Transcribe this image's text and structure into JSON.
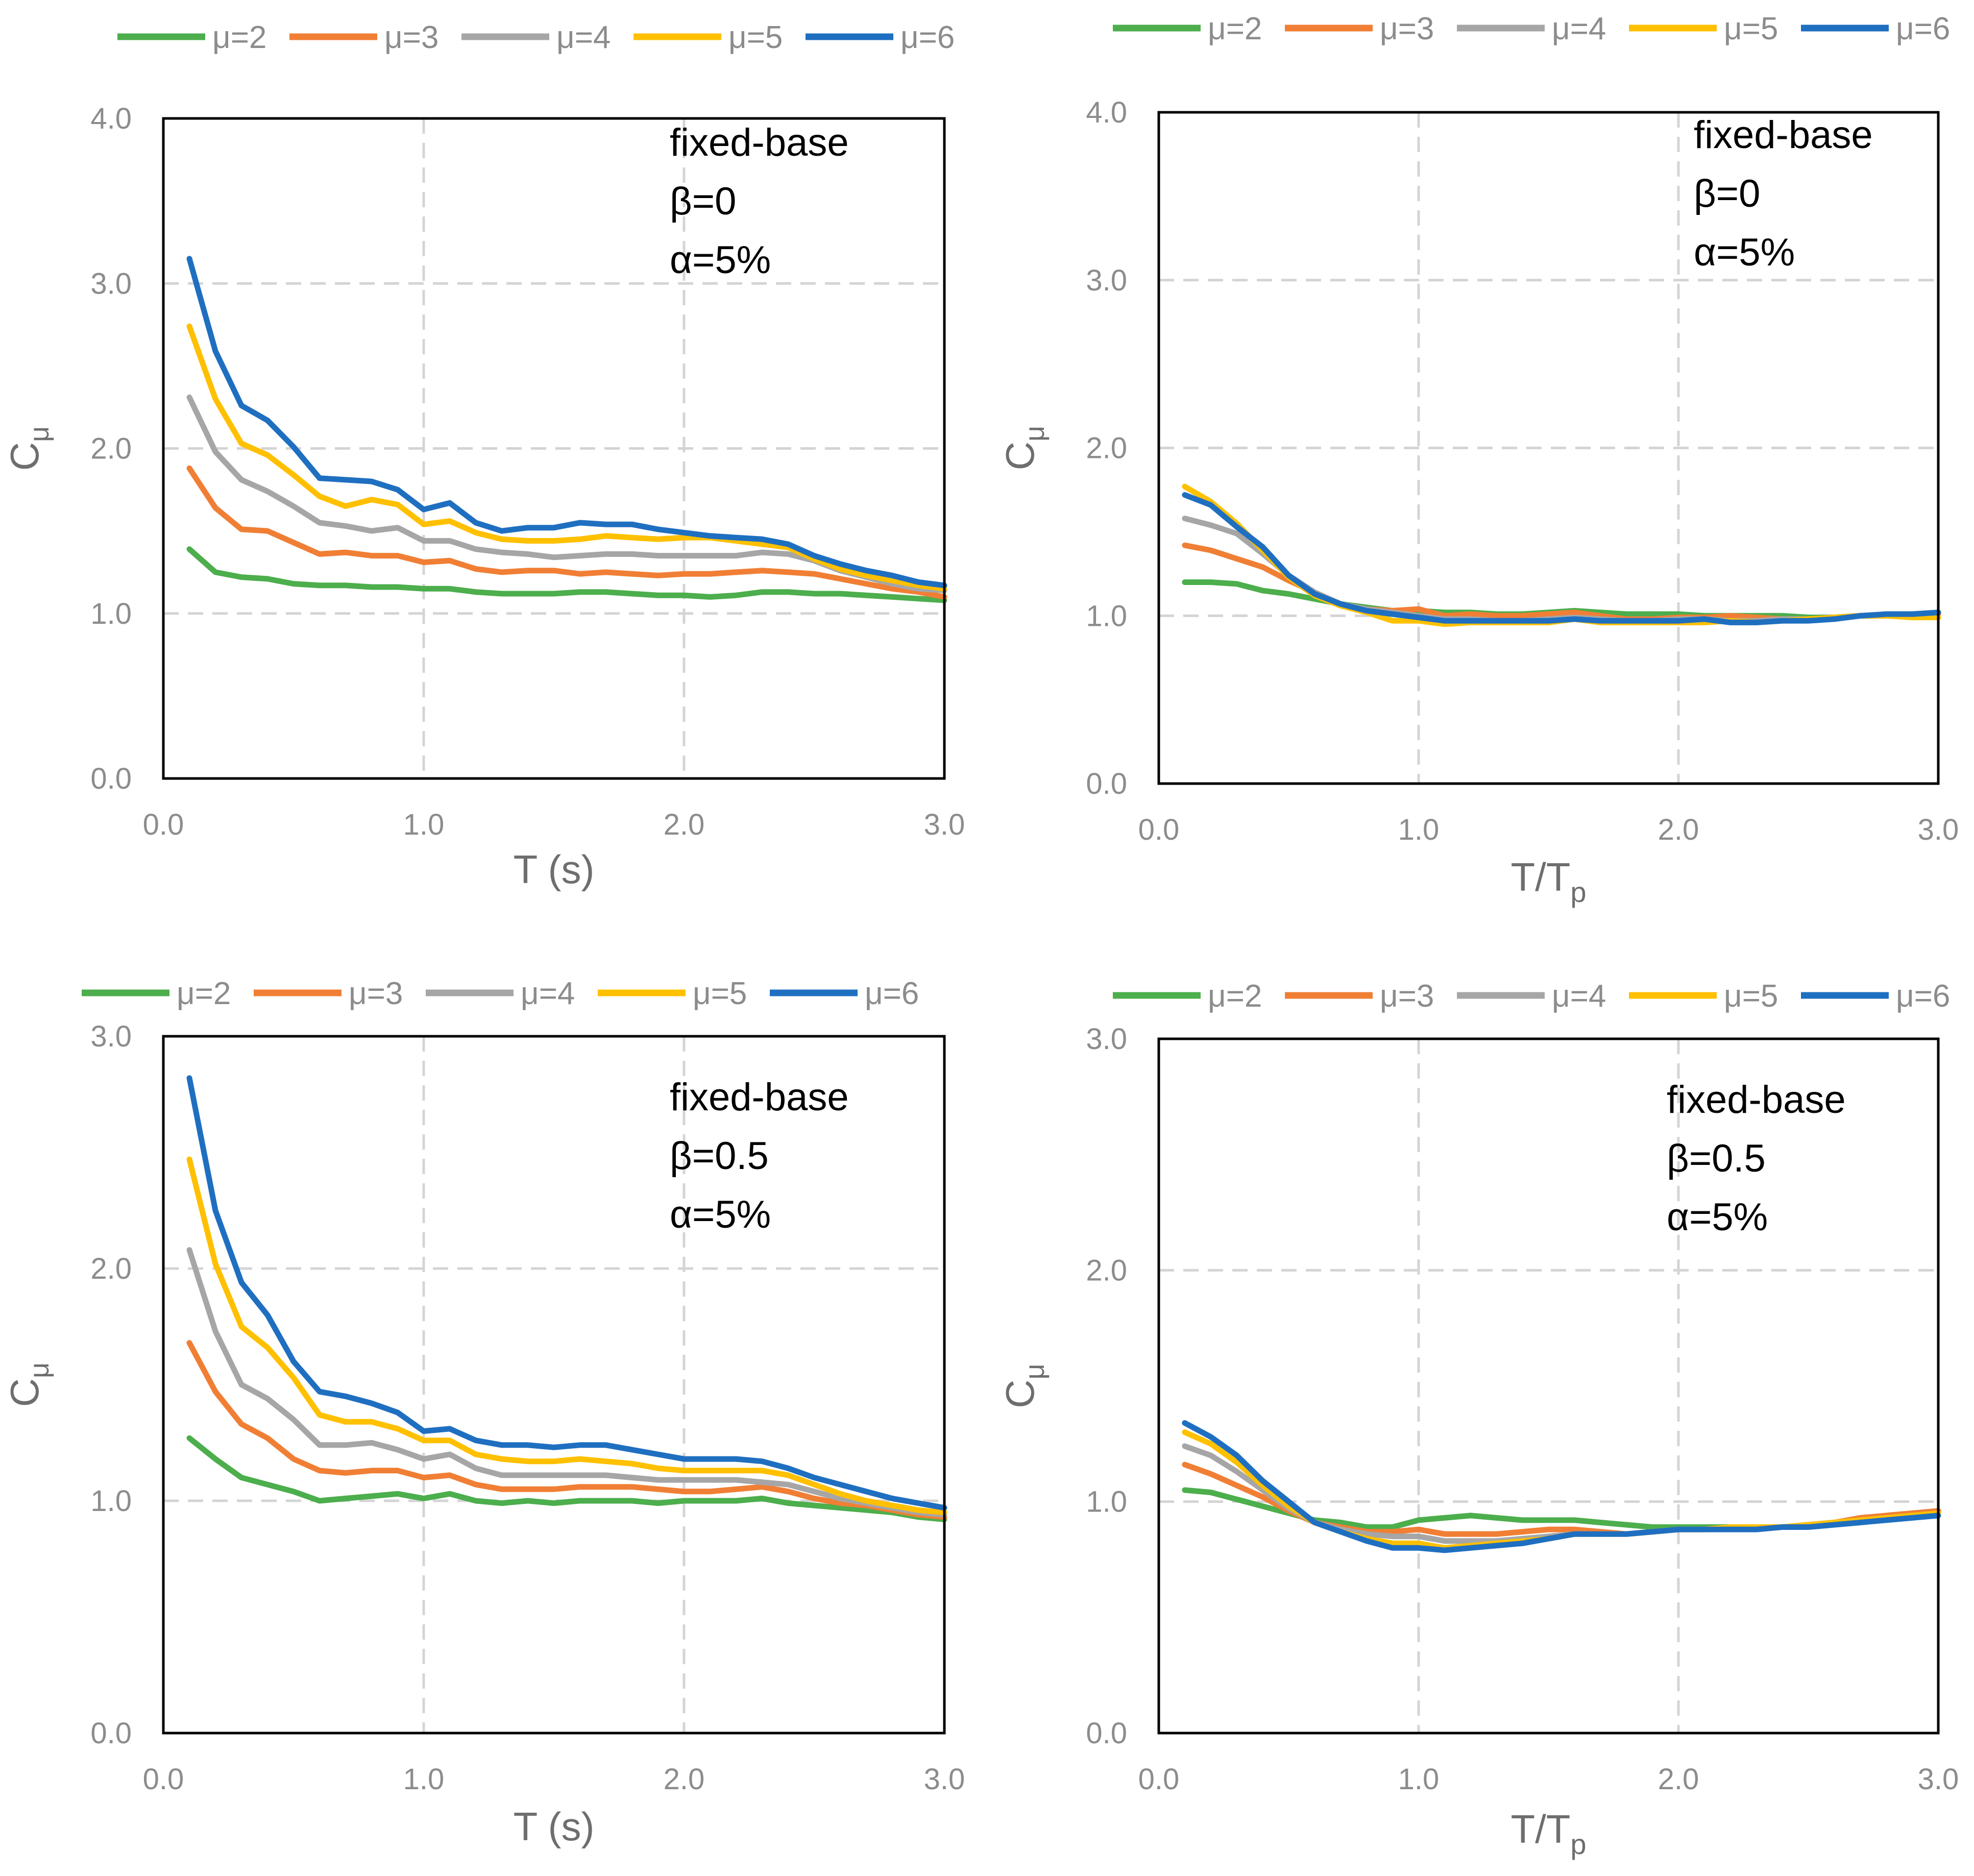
{
  "chart_data": [
    {
      "type": "line",
      "xlabel": "T (s)",
      "ylabel": "C",
      "ylabel_sub": "μ",
      "xlim": [
        0,
        3
      ],
      "ylim": [
        0,
        4
      ],
      "xticks": [
        "0.0",
        "1.0",
        "2.0",
        "3.0"
      ],
      "yticks": [
        "0.0",
        "1.0",
        "2.0",
        "3.0",
        "4.0"
      ],
      "grid": true,
      "legend": "top",
      "annotations": [
        "fixed-base",
        "β=0",
        "α=5%"
      ],
      "x": [
        0.1,
        0.2,
        0.3,
        0.4,
        0.5,
        0.6,
        0.7,
        0.8,
        0.9,
        1.0,
        1.1,
        1.2,
        1.3,
        1.4,
        1.5,
        1.6,
        1.7,
        1.8,
        1.9,
        2.0,
        2.1,
        2.2,
        2.3,
        2.4,
        2.5,
        2.6,
        2.7,
        2.8,
        2.9,
        3.0
      ],
      "series": [
        {
          "name": "μ=2",
          "color": "#4cae4c",
          "values": [
            1.39,
            1.25,
            1.22,
            1.21,
            1.18,
            1.17,
            1.17,
            1.16,
            1.16,
            1.15,
            1.15,
            1.13,
            1.12,
            1.12,
            1.12,
            1.13,
            1.13,
            1.12,
            1.11,
            1.11,
            1.1,
            1.11,
            1.13,
            1.13,
            1.12,
            1.12,
            1.11,
            1.1,
            1.09,
            1.08
          ]
        },
        {
          "name": "μ=3",
          "color": "#f07f35",
          "values": [
            1.88,
            1.64,
            1.51,
            1.5,
            1.43,
            1.36,
            1.37,
            1.35,
            1.35,
            1.31,
            1.32,
            1.27,
            1.25,
            1.26,
            1.26,
            1.24,
            1.25,
            1.24,
            1.23,
            1.24,
            1.24,
            1.25,
            1.26,
            1.25,
            1.24,
            1.21,
            1.18,
            1.15,
            1.13,
            1.1
          ]
        },
        {
          "name": "μ=4",
          "color": "#a6a6a6",
          "values": [
            2.31,
            1.98,
            1.81,
            1.74,
            1.65,
            1.55,
            1.53,
            1.5,
            1.52,
            1.44,
            1.44,
            1.39,
            1.37,
            1.36,
            1.34,
            1.35,
            1.36,
            1.36,
            1.35,
            1.35,
            1.35,
            1.35,
            1.37,
            1.36,
            1.32,
            1.26,
            1.22,
            1.18,
            1.15,
            1.14
          ]
        },
        {
          "name": "μ=5",
          "color": "#ffc000",
          "values": [
            2.74,
            2.3,
            2.03,
            1.96,
            1.84,
            1.71,
            1.65,
            1.69,
            1.66,
            1.54,
            1.56,
            1.49,
            1.45,
            1.44,
            1.44,
            1.45,
            1.47,
            1.46,
            1.45,
            1.46,
            1.46,
            1.44,
            1.42,
            1.4,
            1.33,
            1.27,
            1.23,
            1.2,
            1.17,
            1.15
          ]
        },
        {
          "name": "μ=6",
          "color": "#1f6fc0",
          "values": [
            3.15,
            2.59,
            2.26,
            2.17,
            2.01,
            1.82,
            1.81,
            1.8,
            1.75,
            1.63,
            1.67,
            1.55,
            1.5,
            1.52,
            1.52,
            1.55,
            1.54,
            1.54,
            1.51,
            1.49,
            1.47,
            1.46,
            1.45,
            1.42,
            1.35,
            1.3,
            1.26,
            1.23,
            1.19,
            1.17
          ]
        }
      ]
    },
    {
      "type": "line",
      "xlabel": "T/T",
      "xlabel_sub": "p",
      "ylabel": "C",
      "ylabel_sub": "μ",
      "xlim": [
        0,
        3
      ],
      "ylim": [
        0,
        4
      ],
      "xticks": [
        "0.0",
        "1.0",
        "2.0",
        "3.0"
      ],
      "yticks": [
        "0.0",
        "1.0",
        "2.0",
        "3.0",
        "4.0"
      ],
      "grid": true,
      "legend": "top",
      "annotations": [
        "fixed-base",
        "β=0",
        "α=5%"
      ],
      "x": [
        0.1,
        0.2,
        0.3,
        0.4,
        0.5,
        0.6,
        0.7,
        0.8,
        0.9,
        1.0,
        1.1,
        1.2,
        1.3,
        1.4,
        1.5,
        1.6,
        1.7,
        1.8,
        1.9,
        2.0,
        2.1,
        2.2,
        2.3,
        2.4,
        2.5,
        2.6,
        2.7,
        2.8,
        2.9,
        3.0
      ],
      "series": [
        {
          "name": "μ=2",
          "color": "#4cae4c",
          "values": [
            1.2,
            1.2,
            1.19,
            1.15,
            1.13,
            1.1,
            1.07,
            1.05,
            1.03,
            1.03,
            1.02,
            1.02,
            1.01,
            1.01,
            1.02,
            1.03,
            1.02,
            1.01,
            1.01,
            1.01,
            1.0,
            1.0,
            1.0,
            1.0,
            0.99,
            0.99,
            1.0,
            1.0,
            1.0,
            1.01
          ]
        },
        {
          "name": "μ=3",
          "color": "#f07f35",
          "values": [
            1.42,
            1.39,
            1.34,
            1.29,
            1.21,
            1.14,
            1.07,
            1.04,
            1.03,
            1.04,
            1.0,
            1.01,
            1.0,
            1.0,
            1.01,
            1.02,
            1.0,
            0.98,
            0.98,
            0.99,
            0.99,
            1.0,
            0.99,
            0.98,
            0.98,
            0.99,
            1.0,
            1.0,
            1.0,
            1.01
          ]
        },
        {
          "name": "μ=4",
          "color": "#a6a6a6",
          "values": [
            1.58,
            1.54,
            1.49,
            1.37,
            1.24,
            1.14,
            1.07,
            1.04,
            1.02,
            1.0,
            0.98,
            0.98,
            0.97,
            0.97,
            0.98,
            0.99,
            0.98,
            0.97,
            0.97,
            0.98,
            0.98,
            0.97,
            0.97,
            0.98,
            0.98,
            0.99,
            1.0,
            1.0,
            1.01,
            1.02
          ]
        },
        {
          "name": "μ=5",
          "color": "#ffc000",
          "values": [
            1.77,
            1.68,
            1.55,
            1.39,
            1.23,
            1.12,
            1.06,
            1.02,
            0.97,
            0.97,
            0.95,
            0.96,
            0.96,
            0.96,
            0.96,
            0.98,
            0.96,
            0.96,
            0.96,
            0.96,
            0.96,
            0.97,
            0.96,
            0.97,
            0.98,
            0.99,
            1.0,
            1.0,
            0.99,
            0.99
          ]
        },
        {
          "name": "μ=6",
          "color": "#1f6fc0",
          "values": [
            1.72,
            1.66,
            1.53,
            1.41,
            1.24,
            1.13,
            1.07,
            1.03,
            1.01,
            0.99,
            0.97,
            0.97,
            0.97,
            0.97,
            0.97,
            0.98,
            0.97,
            0.97,
            0.97,
            0.97,
            0.98,
            0.96,
            0.96,
            0.97,
            0.97,
            0.98,
            1.0,
            1.01,
            1.01,
            1.02
          ]
        }
      ]
    },
    {
      "type": "line",
      "xlabel": "T (s)",
      "ylabel": "C",
      "ylabel_sub": "μ",
      "xlim": [
        0,
        3
      ],
      "ylim": [
        0,
        3
      ],
      "xticks": [
        "0.0",
        "1.0",
        "2.0",
        "3.0"
      ],
      "yticks": [
        "0.0",
        "1.0",
        "2.0",
        "3.0"
      ],
      "grid": true,
      "legend": "top",
      "annotations": [
        "fixed-base",
        "β=0.5",
        "α=5%"
      ],
      "x": [
        0.1,
        0.2,
        0.3,
        0.4,
        0.5,
        0.6,
        0.7,
        0.8,
        0.9,
        1.0,
        1.1,
        1.2,
        1.3,
        1.4,
        1.5,
        1.6,
        1.7,
        1.8,
        1.9,
        2.0,
        2.1,
        2.2,
        2.3,
        2.4,
        2.5,
        2.6,
        2.7,
        2.8,
        2.9,
        3.0
      ],
      "series": [
        {
          "name": "μ=2",
          "color": "#4cae4c",
          "values": [
            1.27,
            1.18,
            1.1,
            1.07,
            1.04,
            1.0,
            1.01,
            1.02,
            1.03,
            1.01,
            1.03,
            1.0,
            0.99,
            1.0,
            0.99,
            1.0,
            1.0,
            1.0,
            0.99,
            1.0,
            1.0,
            1.0,
            1.01,
            0.99,
            0.98,
            0.97,
            0.96,
            0.95,
            0.93,
            0.92
          ]
        },
        {
          "name": "μ=3",
          "color": "#f07f35",
          "values": [
            1.68,
            1.47,
            1.33,
            1.27,
            1.18,
            1.13,
            1.12,
            1.13,
            1.13,
            1.1,
            1.11,
            1.07,
            1.05,
            1.05,
            1.05,
            1.06,
            1.06,
            1.06,
            1.05,
            1.04,
            1.04,
            1.05,
            1.06,
            1.04,
            1.01,
            0.99,
            0.98,
            0.96,
            0.94,
            0.93
          ]
        },
        {
          "name": "μ=4",
          "color": "#a6a6a6",
          "values": [
            2.08,
            1.73,
            1.5,
            1.44,
            1.35,
            1.24,
            1.24,
            1.25,
            1.22,
            1.18,
            1.2,
            1.14,
            1.11,
            1.11,
            1.11,
            1.11,
            1.11,
            1.1,
            1.09,
            1.09,
            1.09,
            1.09,
            1.08,
            1.07,
            1.04,
            1.01,
            0.99,
            0.97,
            0.95,
            0.94
          ]
        },
        {
          "name": "μ=5",
          "color": "#ffc000",
          "values": [
            2.47,
            2.02,
            1.75,
            1.66,
            1.53,
            1.37,
            1.34,
            1.34,
            1.31,
            1.26,
            1.26,
            1.2,
            1.18,
            1.17,
            1.17,
            1.18,
            1.17,
            1.16,
            1.14,
            1.13,
            1.13,
            1.13,
            1.13,
            1.11,
            1.07,
            1.03,
            1.0,
            0.98,
            0.96,
            0.95
          ]
        },
        {
          "name": "μ=6",
          "color": "#1f6fc0",
          "values": [
            2.82,
            2.25,
            1.94,
            1.8,
            1.6,
            1.47,
            1.45,
            1.42,
            1.38,
            1.3,
            1.31,
            1.26,
            1.24,
            1.24,
            1.23,
            1.24,
            1.24,
            1.22,
            1.2,
            1.18,
            1.18,
            1.18,
            1.17,
            1.14,
            1.1,
            1.07,
            1.04,
            1.01,
            0.99,
            0.97
          ]
        }
      ]
    },
    {
      "type": "line",
      "xlabel": "T/T",
      "xlabel_sub": "p",
      "ylabel": "C",
      "ylabel_sub": "μ",
      "xlim": [
        0,
        3
      ],
      "ylim": [
        0,
        3
      ],
      "xticks": [
        "0.0",
        "1.0",
        "2.0",
        "3.0"
      ],
      "yticks": [
        "0.0",
        "1.0",
        "2.0",
        "3.0"
      ],
      "grid": true,
      "legend": "top",
      "annotations": [
        "fixed-base",
        "β=0.5",
        "α=5%"
      ],
      "x": [
        0.1,
        0.2,
        0.3,
        0.4,
        0.5,
        0.6,
        0.7,
        0.8,
        0.9,
        1.0,
        1.1,
        1.2,
        1.3,
        1.4,
        1.5,
        1.6,
        1.7,
        1.8,
        1.9,
        2.0,
        2.1,
        2.2,
        2.3,
        2.4,
        2.5,
        2.6,
        2.7,
        2.8,
        2.9,
        3.0
      ],
      "series": [
        {
          "name": "μ=2",
          "color": "#4cae4c",
          "values": [
            1.05,
            1.04,
            1.01,
            0.98,
            0.95,
            0.92,
            0.91,
            0.89,
            0.89,
            0.92,
            0.93,
            0.94,
            0.93,
            0.92,
            0.92,
            0.92,
            0.91,
            0.9,
            0.89,
            0.89,
            0.89,
            0.89,
            0.89,
            0.89,
            0.9,
            0.91,
            0.92,
            0.94,
            0.95,
            0.96
          ]
        },
        {
          "name": "μ=3",
          "color": "#f07f35",
          "values": [
            1.16,
            1.12,
            1.07,
            1.02,
            0.96,
            0.91,
            0.89,
            0.87,
            0.87,
            0.88,
            0.86,
            0.86,
            0.86,
            0.87,
            0.88,
            0.88,
            0.87,
            0.86,
            0.87,
            0.88,
            0.88,
            0.89,
            0.89,
            0.89,
            0.9,
            0.91,
            0.93,
            0.94,
            0.95,
            0.96
          ]
        },
        {
          "name": "μ=4",
          "color": "#a6a6a6",
          "values": [
            1.24,
            1.2,
            1.13,
            1.05,
            0.97,
            0.91,
            0.88,
            0.86,
            0.85,
            0.85,
            0.83,
            0.83,
            0.83,
            0.84,
            0.85,
            0.86,
            0.86,
            0.86,
            0.87,
            0.88,
            0.88,
            0.89,
            0.89,
            0.89,
            0.9,
            0.91,
            0.92,
            0.93,
            0.94,
            0.95
          ]
        },
        {
          "name": "μ=5",
          "color": "#ffc000",
          "values": [
            1.3,
            1.25,
            1.17,
            1.07,
            0.98,
            0.91,
            0.87,
            0.84,
            0.82,
            0.82,
            0.8,
            0.81,
            0.82,
            0.83,
            0.84,
            0.86,
            0.86,
            0.86,
            0.87,
            0.88,
            0.88,
            0.89,
            0.89,
            0.89,
            0.9,
            0.91,
            0.92,
            0.93,
            0.94,
            0.95
          ]
        },
        {
          "name": "μ=6",
          "color": "#1f6fc0",
          "values": [
            1.34,
            1.28,
            1.2,
            1.09,
            1.0,
            0.91,
            0.87,
            0.83,
            0.8,
            0.8,
            0.79,
            0.8,
            0.81,
            0.82,
            0.84,
            0.86,
            0.86,
            0.86,
            0.87,
            0.88,
            0.88,
            0.88,
            0.88,
            0.89,
            0.89,
            0.9,
            0.91,
            0.92,
            0.93,
            0.94
          ]
        }
      ]
    }
  ]
}
